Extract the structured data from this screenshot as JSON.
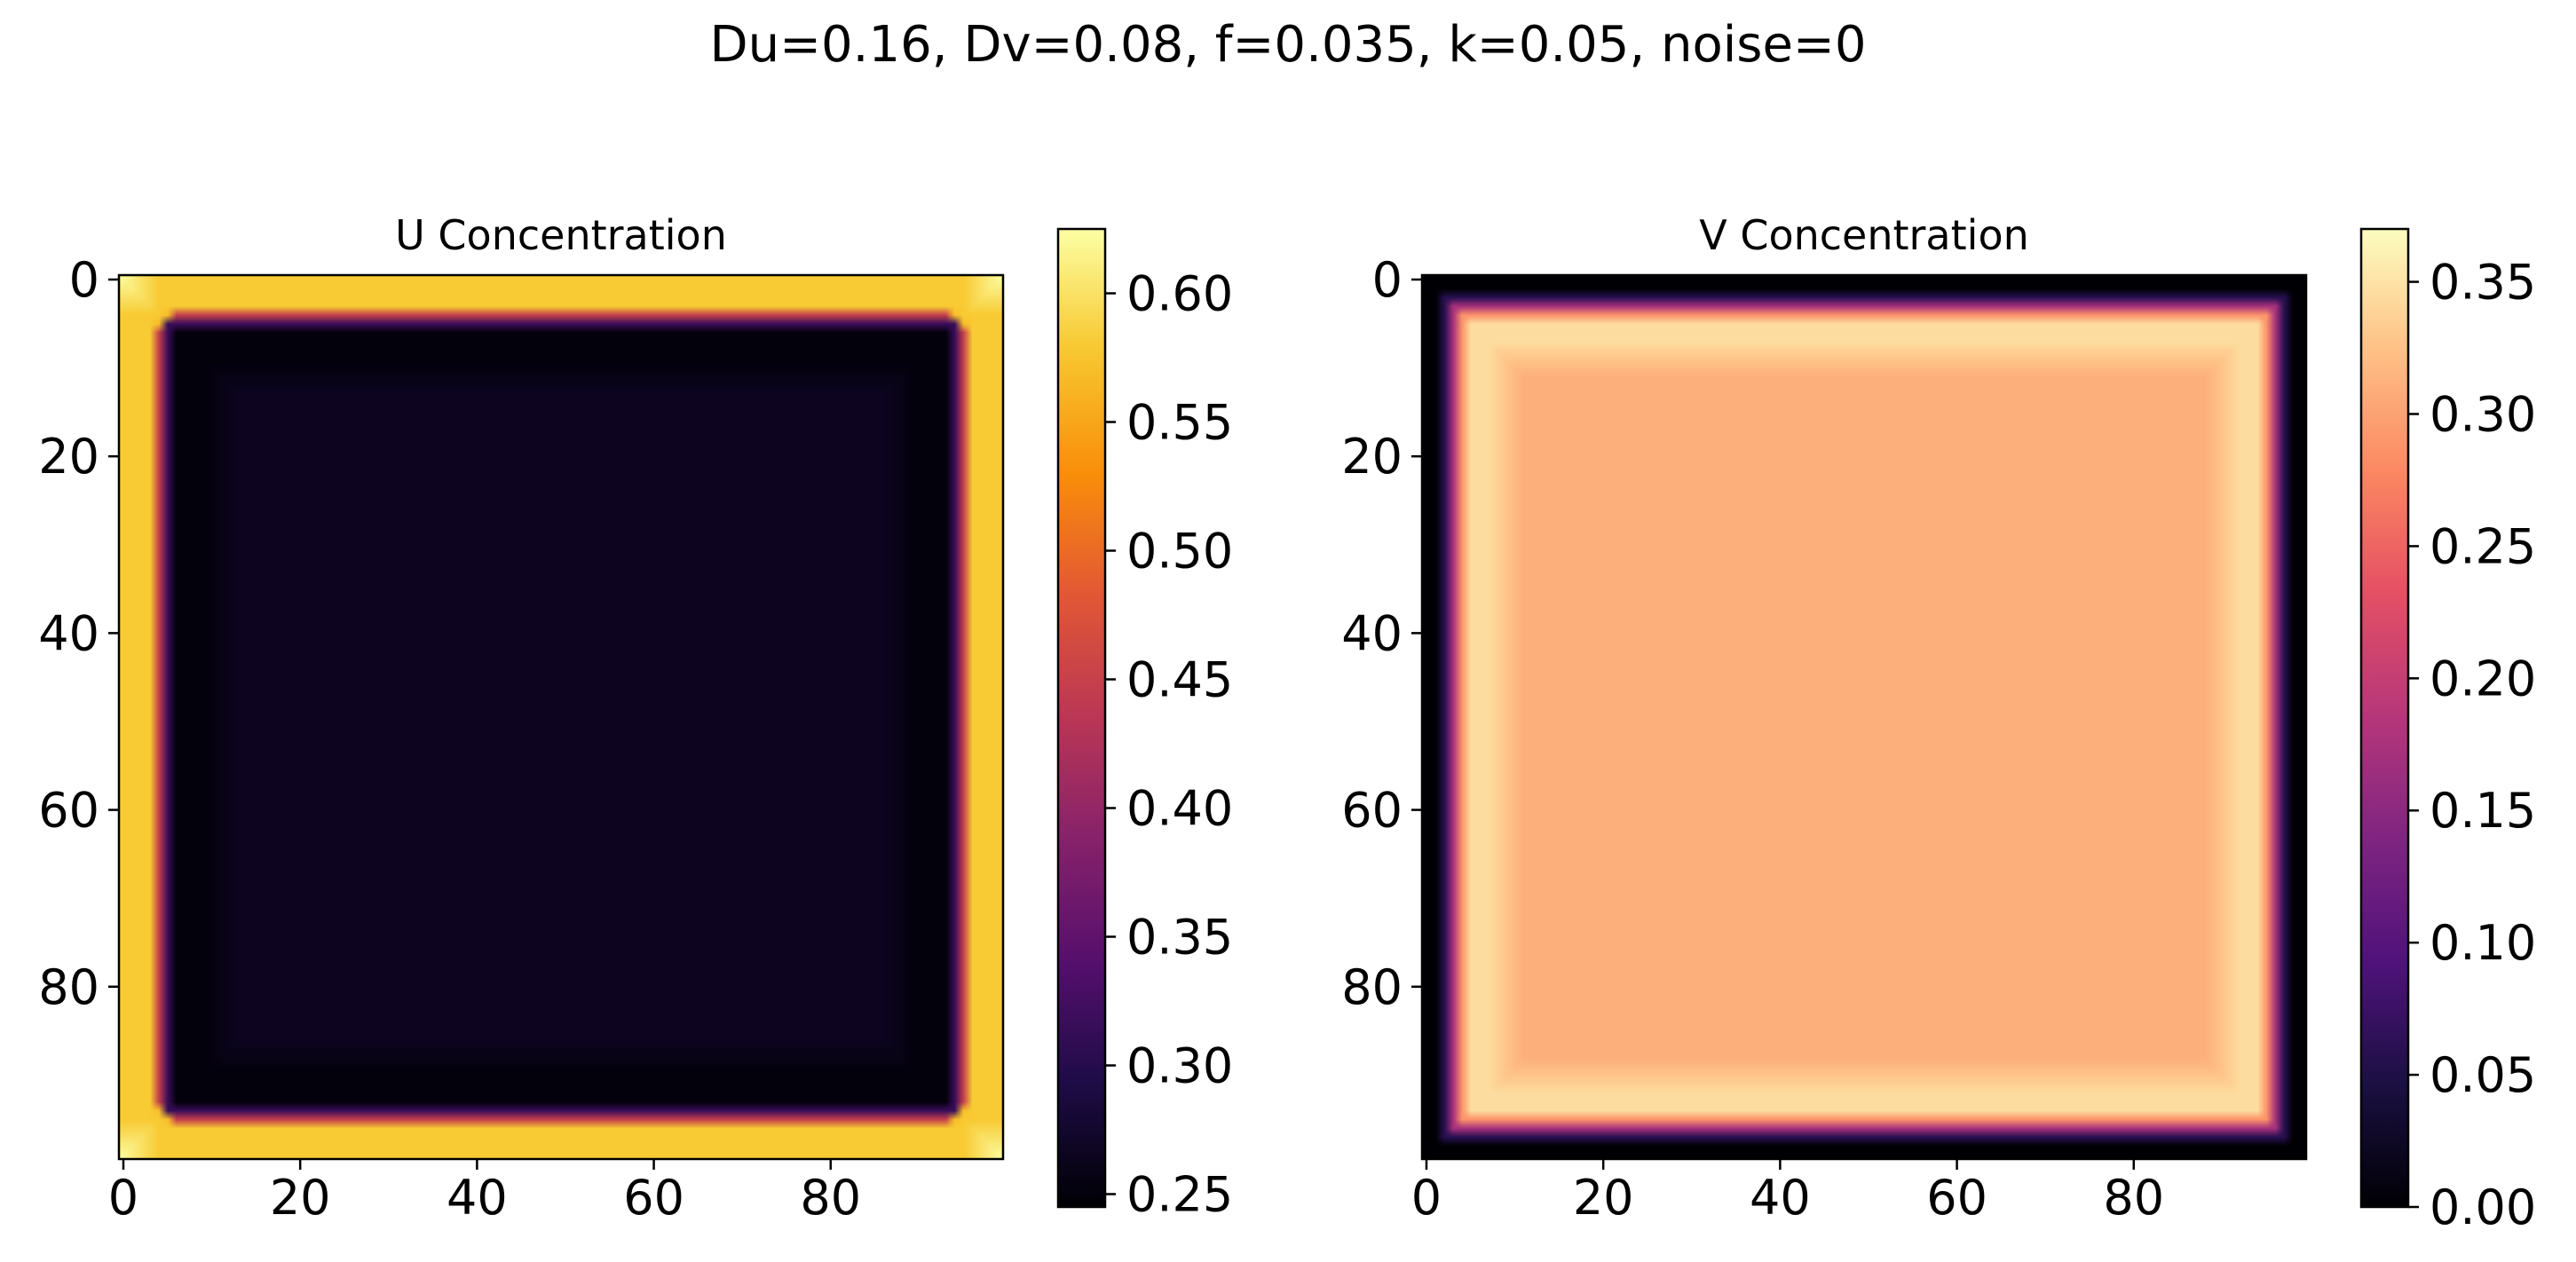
{
  "figure": {
    "suptitle": "Du=0.16, Dv=0.08, f=0.035, k=0.05, noise=0"
  },
  "chart_data": [
    {
      "type": "heatmap",
      "title": "U Concentration",
      "colormap": "inferno",
      "grid_size": [
        100,
        100
      ],
      "field": {
        "edge_value": 0.58,
        "corner_value": 0.62,
        "trough_value": 0.25,
        "interior_value": 0.265
      },
      "xlim": [
        0,
        99
      ],
      "ylim": [
        99,
        0
      ],
      "xticks": [
        0,
        20,
        40,
        60,
        80
      ],
      "yticks": [
        0,
        20,
        40,
        60,
        80
      ],
      "colorbar": {
        "min": 0.245,
        "max": 0.625,
        "ticks": [
          "0.25",
          "0.30",
          "0.35",
          "0.40",
          "0.45",
          "0.50",
          "0.55",
          "0.60"
        ]
      }
    },
    {
      "type": "heatmap",
      "title": "V Concentration",
      "colormap": "magma",
      "grid_size": [
        100,
        100
      ],
      "field": {
        "edge_value": 0.0,
        "ring_value": 0.345,
        "interior_value": 0.31
      },
      "xlim": [
        0,
        99
      ],
      "ylim": [
        99,
        0
      ],
      "xticks": [
        0,
        20,
        40,
        60,
        80
      ],
      "yticks": [
        0,
        20,
        40,
        60,
        80
      ],
      "colorbar": {
        "min": 0.0,
        "max": 0.37,
        "ticks": [
          "0.00",
          "0.05",
          "0.10",
          "0.15",
          "0.20",
          "0.25",
          "0.30",
          "0.35"
        ]
      }
    }
  ]
}
